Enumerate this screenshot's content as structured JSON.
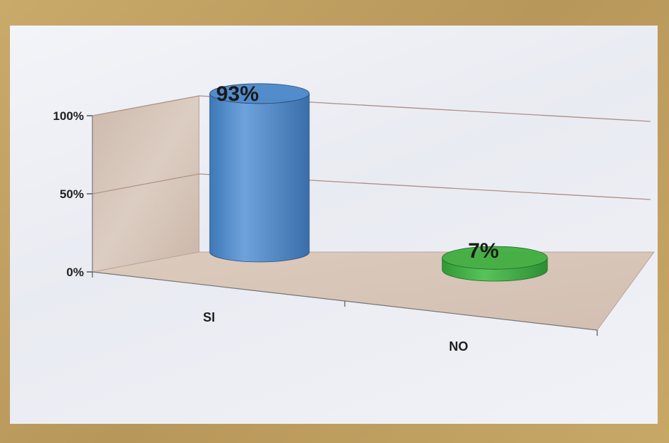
{
  "chart_data": {
    "type": "bar",
    "style": "3d-cylinder",
    "categories": [
      "SI",
      "NO"
    ],
    "values": [
      93,
      7
    ],
    "value_labels": [
      "93%",
      "7%"
    ],
    "series_colors": [
      "#4a86c8",
      "#3fae3f"
    ],
    "y_ticks": [
      "0%",
      "50%",
      "100%"
    ],
    "ylim": [
      0,
      100
    ],
    "grid": true,
    "legend": "none"
  }
}
